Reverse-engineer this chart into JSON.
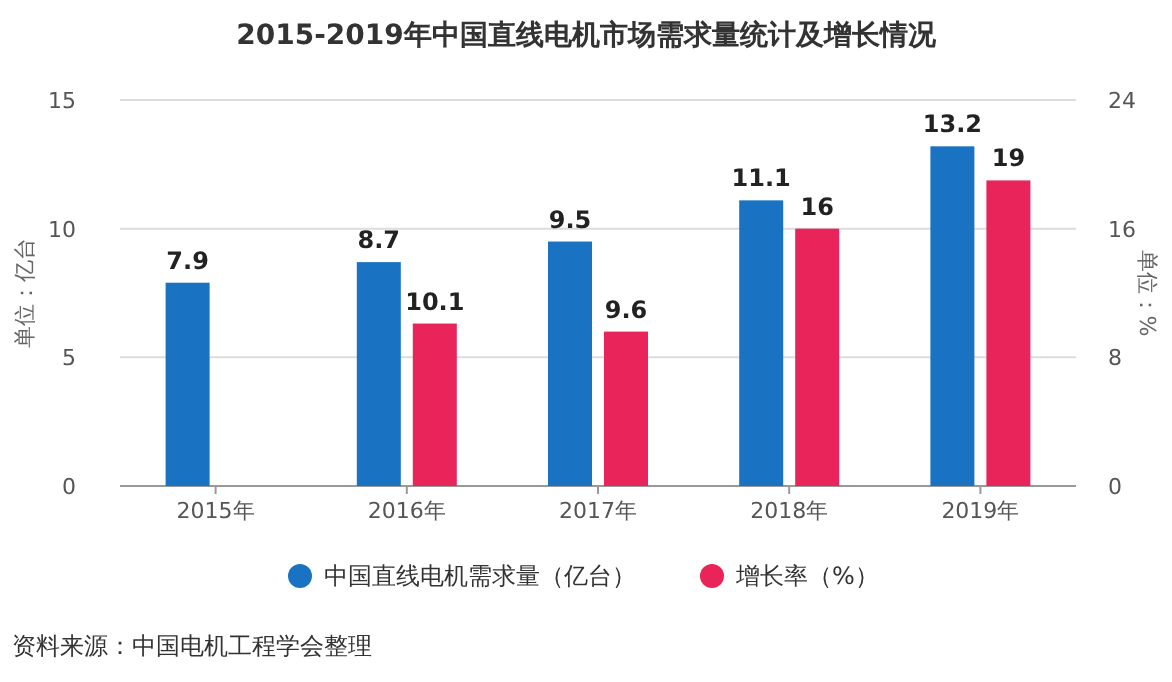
{
  "chart_data": {
    "type": "bar",
    "title": "2015-2019年中国直线电机市场需求量统计及增长情况",
    "categories": [
      "2015年",
      "2016年",
      "2017年",
      "2018年",
      "2019年"
    ],
    "series": [
      {
        "name": "中国直线电机需求量（亿台）",
        "color": "#1a73c2",
        "values": [
          7.9,
          8.7,
          9.5,
          11.1,
          13.2
        ]
      },
      {
        "name": "增长率（%）",
        "color": "#e8245a",
        "axis": "y2",
        "values": [
          null,
          10.1,
          9.6,
          16,
          19
        ]
      }
    ],
    "ylabel": "单位：亿台",
    "y2label": "单位：%",
    "ylim": [
      0,
      15
    ],
    "yticks": [
      0,
      5,
      10,
      15
    ],
    "y2lim": [
      0,
      24
    ],
    "y2ticks": [
      0,
      8,
      16,
      24
    ],
    "data_labels": true,
    "grid": "y",
    "legend": "bottom",
    "annotations": [
      "资料来源：中国电机工程学会整理"
    ]
  }
}
